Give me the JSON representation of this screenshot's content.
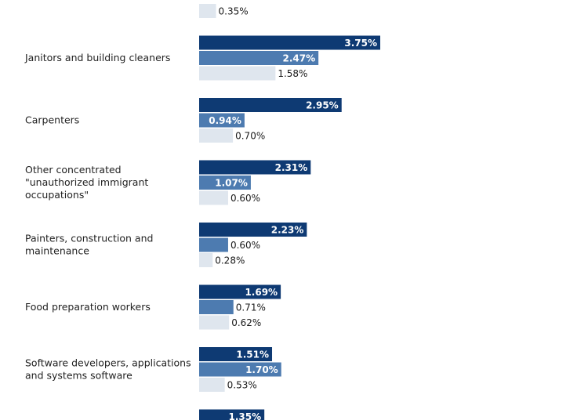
{
  "chart_data": {
    "type": "bar",
    "orientation": "horizontal",
    "categories": [
      "",
      "Janitors and building cleaners",
      "Carpenters",
      "Other concentrated \"unauthorized immigrant occupations\"",
      "Painters, construction and maintenance",
      "Food preparation workers",
      "Software developers, applications and systems software",
      ""
    ],
    "series": [
      {
        "values": [
          null,
          3.75,
          2.95,
          2.31,
          2.23,
          1.69,
          1.51,
          1.35
        ]
      },
      {
        "values": [
          null,
          2.47,
          0.94,
          1.07,
          0.6,
          0.71,
          1.7,
          null
        ]
      },
      {
        "values": [
          0.35,
          1.58,
          0.7,
          0.6,
          0.28,
          0.62,
          0.53,
          null
        ]
      }
    ],
    "value_suffix": "%",
    "colors": [
      "#0e3a73",
      "#4d7bb0",
      "#dfe6ee"
    ],
    "grid": false,
    "legend": "none"
  }
}
